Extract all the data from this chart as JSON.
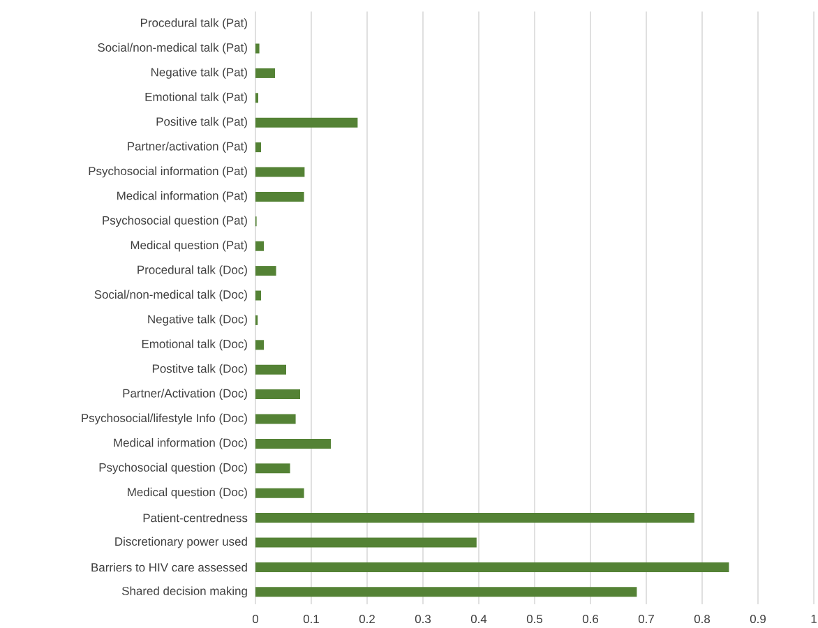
{
  "chart_data": {
    "type": "bar",
    "orientation": "horizontal",
    "categories": [
      "Procedural talk (Pat)",
      "Social/non-medical talk (Pat)",
      "Negative talk (Pat)",
      "Emotional talk (Pat)",
      "Positive talk (Pat)",
      "Partner/activation (Pat)",
      "Psychosocial information (Pat)",
      "Medical information (Pat)",
      "Psychosocial question (Pat)",
      "Medical question (Pat)",
      "Procedural talk (Doc)",
      "Social/non-medical talk (Doc)",
      "Negative talk (Doc)",
      "Emotional talk (Doc)",
      "Postitve talk (Doc)",
      "Partner/Activation (Doc)",
      "Psychosocial/lifestyle Info (Doc)",
      "Medical information (Doc)",
      "Psychosocial question (Doc)",
      "Medical question (Doc)",
      "Patient-centredness",
      "Discretionary power used",
      "Barriers to HIV care assessed",
      "Shared decision making"
    ],
    "values": [
      0,
      0.007,
      0.035,
      0.005,
      0.183,
      0.01,
      0.088,
      0.087,
      0.002,
      0.015,
      0.037,
      0.01,
      0.004,
      0.015,
      0.055,
      0.08,
      0.072,
      0.135,
      0.062,
      0.087,
      0.786,
      0.396,
      0.848,
      0.683
    ],
    "color": "#548235",
    "xlim": [
      0,
      1
    ],
    "xticks": [
      0,
      0.1,
      0.2,
      0.3,
      0.4,
      0.5,
      0.6,
      0.7,
      0.8,
      0.9,
      1
    ],
    "grid": "x"
  }
}
